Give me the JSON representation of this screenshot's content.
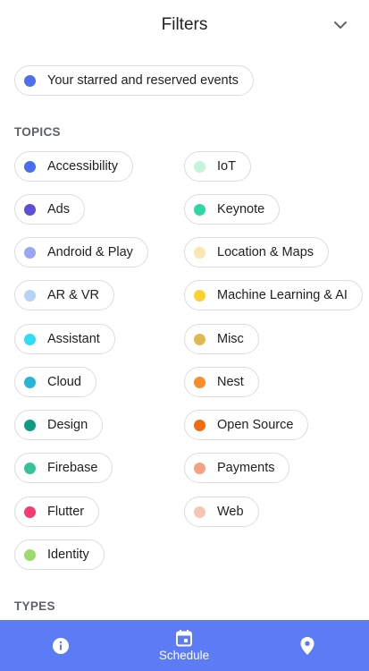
{
  "header": {
    "title": "Filters"
  },
  "starred": {
    "label": "Your starred and reserved events",
    "color": "#4e6ef2"
  },
  "sections": {
    "topics": "TOPICS",
    "types": "TYPES"
  },
  "topics": [
    {
      "label": "Accessibility",
      "color": "#4a6cf0"
    },
    {
      "label": "IoT",
      "color": "#c6f3d9"
    },
    {
      "label": "Ads",
      "color": "#5a4fd6"
    },
    {
      "label": "Keynote",
      "color": "#2dd8a5"
    },
    {
      "label": "Android & Play",
      "color": "#98a6f5"
    },
    {
      "label": "Location & Maps",
      "color": "#fbe6b3"
    },
    {
      "label": "AR & VR",
      "color": "#b5d3f5"
    },
    {
      "label": "Machine Learning & AI",
      "color": "#fdd12e"
    },
    {
      "label": "Assistant",
      "color": "#2fdcf6"
    },
    {
      "label": "Misc",
      "color": "#e0b950"
    },
    {
      "label": "Cloud",
      "color": "#26b5d6"
    },
    {
      "label": "Nest",
      "color": "#fb8c2a"
    },
    {
      "label": "Design",
      "color": "#0f9a82"
    },
    {
      "label": "Open Source",
      "color": "#f26a0f"
    },
    {
      "label": "Firebase",
      "color": "#36c39a"
    },
    {
      "label": "Payments",
      "color": "#f8a083"
    },
    {
      "label": "Flutter",
      "color": "#f23c73"
    },
    {
      "label": "Web",
      "color": "#f8c4b4"
    },
    {
      "label": "Identity",
      "color": "#9cdc6c"
    }
  ],
  "bottom_nav": {
    "items": [
      {
        "icon": "info-icon",
        "label": ""
      },
      {
        "icon": "calendar-icon",
        "label": "Schedule"
      },
      {
        "icon": "map-pin-icon",
        "label": ""
      }
    ],
    "background": "#5b7cf5"
  }
}
